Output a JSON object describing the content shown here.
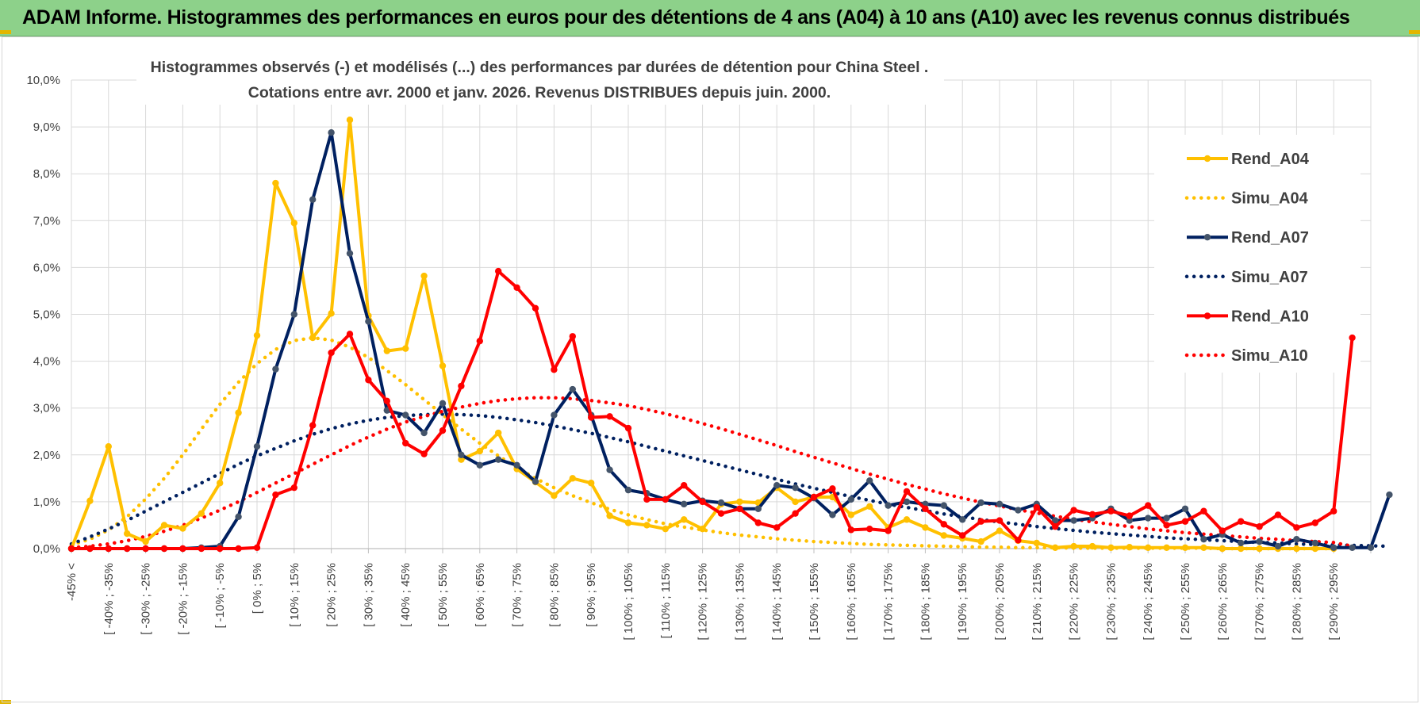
{
  "banner": {
    "title": "ADAM Informe. Histogrammes des performances en euros pour des détentions de 4 ans (A04) à 10 ans (A10) avec les revenus connus distribués"
  },
  "colors": {
    "banner_bg": "#8dd18a",
    "A04": "#ffc000",
    "A07": "#002060",
    "A10": "#ff0000",
    "marker_A07": "#44546a"
  },
  "chart_data": {
    "type": "line",
    "title_lines": [
      "Histogrammes observés (-) et modélisés (...) des performances par durées de détention pour China Steel .",
      "Cotations entre avr. 2000 et janv. 2026. Revenus DISTRIBUES depuis juin. 2000."
    ],
    "xlabel": "",
    "ylabel": "",
    "ylim": [
      0,
      10
    ],
    "y_ticks": [
      "0,0%",
      "1,0%",
      "2,0%",
      "3,0%",
      "4,0%",
      "5,0%",
      "6,0%",
      "7,0%",
      "8,0%",
      "9,0%",
      "10,0%"
    ],
    "x_labels": [
      "-45% <",
      "[ -40% ; -35%",
      "[ -30% ; -25%",
      "[ -20% ; -15%",
      "[ -10% ; -5%",
      "[ 0% ; 5%",
      "[ 10% ; 15%",
      "[ 20% ; 25%",
      "[ 30% ; 35%",
      "[ 40% ; 45%",
      "[ 50% ; 55%",
      "[ 60% ; 65%",
      "[ 70% ; 75%",
      "[ 80% ; 85%",
      "[ 90% ; 95%",
      "[ 100% ; 105%",
      "[ 110% ; 115%",
      "[ 120% ; 125%",
      "[ 130% ; 135%",
      "[ 140% ; 145%",
      "[ 150% ; 155%",
      "[ 160% ; 165%",
      "[ 170% ; 175%",
      "[ 180% ; 185%",
      "[ 190% ; 195%",
      "[ 200% ; 205%",
      "[ 210% ; 215%",
      "[ 220% ; 225%",
      "[ 230% ; 235%",
      "[ 240% ; 245%",
      "[ 250% ; 255%",
      "[ 260% ; 265%",
      "[ 270% ; 275%",
      "[ 280% ; 285%",
      "[ 290% ; 295%"
    ],
    "grid": true,
    "legend_position": "right",
    "series": [
      {
        "name": "Rend_A04",
        "style": "solid",
        "color": "#ffc000",
        "values": [
          0,
          1.02,
          2.18,
          0.32,
          0.15,
          0.5,
          0.43,
          0.75,
          1.4,
          2.9,
          4.55,
          7.8,
          6.95,
          4.5,
          5.02,
          9.15,
          4.97,
          4.22,
          4.27,
          5.82,
          3.9,
          1.9,
          2.08,
          2.47,
          1.7,
          1.42,
          1.13,
          1.5,
          1.4,
          0.7,
          0.55,
          0.5,
          0.42,
          0.62,
          0.42,
          0.95,
          1,
          0.98,
          1.3,
          1,
          1.1,
          1.1,
          0.72,
          0.9,
          0.45,
          0.62,
          0.45,
          0.28,
          0.22,
          0.15,
          0.38,
          0.17,
          0.12,
          0.02,
          0.05,
          0.05,
          0.02,
          0.03,
          0.02,
          0.02,
          0.02,
          0.02,
          0,
          0,
          0,
          0,
          0,
          0,
          0
        ]
      },
      {
        "name": "Simu_A04",
        "style": "dotted",
        "color": "#ffc000",
        "values": [
          0.08,
          0.2,
          0.4,
          0.68,
          1.06,
          1.5,
          2.0,
          2.55,
          3.08,
          3.55,
          3.95,
          4.25,
          4.44,
          4.5,
          4.45,
          4.3,
          4.08,
          3.8,
          3.5,
          3.18,
          2.86,
          2.55,
          2.25,
          1.98,
          1.73,
          1.5,
          1.3,
          1.13,
          0.98,
          0.84,
          0.72,
          0.62,
          0.53,
          0.46,
          0.4,
          0.34,
          0.29,
          0.25,
          0.21,
          0.18,
          0.15,
          0.13,
          0.11,
          0.09,
          0.08,
          0.07,
          0.06,
          0.05,
          0.04,
          0.03,
          0.03,
          0.02,
          0.02,
          0.02,
          0.01,
          0.01,
          0.01,
          0.01,
          0.01,
          0.01,
          0.01,
          0.01,
          0,
          0,
          0,
          0,
          0,
          0,
          0
        ]
      },
      {
        "name": "Rend_A07",
        "style": "solid",
        "color": "#002060",
        "values": [
          0,
          0,
          0,
          0,
          0,
          0,
          0,
          0.02,
          0.05,
          0.68,
          2.18,
          3.83,
          5,
          7.45,
          8.88,
          6.3,
          4.85,
          2.95,
          2.85,
          2.47,
          3.1,
          2,
          1.78,
          1.9,
          1.78,
          1.43,
          2.85,
          3.4,
          2.85,
          1.68,
          1.25,
          1.18,
          1.05,
          0.95,
          1.02,
          0.98,
          0.85,
          0.85,
          1.35,
          1.3,
          1.08,
          0.72,
          1.05,
          1.45,
          0.92,
          1.0,
          0.95,
          0.92,
          0.62,
          0.98,
          0.95,
          0.82,
          0.95,
          0.6,
          0.6,
          0.65,
          0.85,
          0.6,
          0.65,
          0.65,
          0.85,
          0.2,
          0.3,
          0.12,
          0.15,
          0.05,
          0.2,
          0.12,
          0.02,
          0.02,
          0.02,
          1.15
        ]
      },
      {
        "name": "Simu_A07",
        "style": "dotted",
        "color": "#002060",
        "values": [
          0.1,
          0.25,
          0.42,
          0.6,
          0.8,
          1.0,
          1.2,
          1.4,
          1.6,
          1.8,
          1.98,
          2.14,
          2.3,
          2.44,
          2.56,
          2.66,
          2.74,
          2.8,
          2.84,
          2.86,
          2.87,
          2.86,
          2.84,
          2.8,
          2.75,
          2.69,
          2.62,
          2.54,
          2.46,
          2.37,
          2.28,
          2.18,
          2.08,
          1.98,
          1.88,
          1.78,
          1.68,
          1.58,
          1.48,
          1.38,
          1.29,
          1.2,
          1.11,
          1.03,
          0.95,
          0.88,
          0.81,
          0.74,
          0.68,
          0.62,
          0.57,
          0.52,
          0.47,
          0.43,
          0.39,
          0.35,
          0.32,
          0.29,
          0.26,
          0.23,
          0.21,
          0.19,
          0.17,
          0.15,
          0.13,
          0.12,
          0.1,
          0.09,
          0.08,
          0.07,
          0.06,
          0.05
        ]
      },
      {
        "name": "Rend_A10",
        "style": "solid",
        "color": "#ff0000",
        "values": [
          0,
          0,
          0,
          0,
          0,
          0,
          0,
          0,
          0,
          0,
          0.02,
          1.15,
          1.3,
          2.63,
          4.18,
          4.58,
          3.6,
          3.15,
          2.25,
          2.02,
          2.52,
          3.47,
          4.43,
          5.92,
          5.57,
          5.13,
          3.82,
          4.53,
          2.8,
          2.82,
          2.57,
          1.05,
          1.05,
          1.35,
          1.0,
          0.75,
          0.85,
          0.55,
          0.45,
          0.75,
          1.1,
          1.28,
          0.4,
          0.42,
          0.38,
          1.22,
          0.85,
          0.52,
          0.28,
          0.58,
          0.6,
          0.18,
          0.88,
          0.47,
          0.82,
          0.73,
          0.8,
          0.7,
          0.92,
          0.5,
          0.58,
          0.8,
          0.38,
          0.58,
          0.47,
          0.72,
          0.45,
          0.55,
          0.8,
          4.5
        ]
      },
      {
        "name": "Simu_A10",
        "style": "dotted",
        "color": "#ff0000",
        "values": [
          0.02,
          0.05,
          0.1,
          0.17,
          0.26,
          0.37,
          0.5,
          0.65,
          0.82,
          1.0,
          1.2,
          1.4,
          1.6,
          1.8,
          2.0,
          2.2,
          2.38,
          2.55,
          2.7,
          2.82,
          2.93,
          3.02,
          3.1,
          3.16,
          3.2,
          3.22,
          3.22,
          3.2,
          3.16,
          3.11,
          3.05,
          2.97,
          2.88,
          2.78,
          2.67,
          2.56,
          2.44,
          2.32,
          2.2,
          2.07,
          1.95,
          1.83,
          1.71,
          1.59,
          1.48,
          1.37,
          1.27,
          1.17,
          1.08,
          0.99,
          0.91,
          0.83,
          0.76,
          0.69,
          0.63,
          0.57,
          0.52,
          0.47,
          0.42,
          0.38,
          0.34,
          0.31,
          0.28,
          0.25,
          0.22,
          0.2,
          0.17,
          0.15,
          0.13,
          0.05
        ]
      }
    ]
  }
}
